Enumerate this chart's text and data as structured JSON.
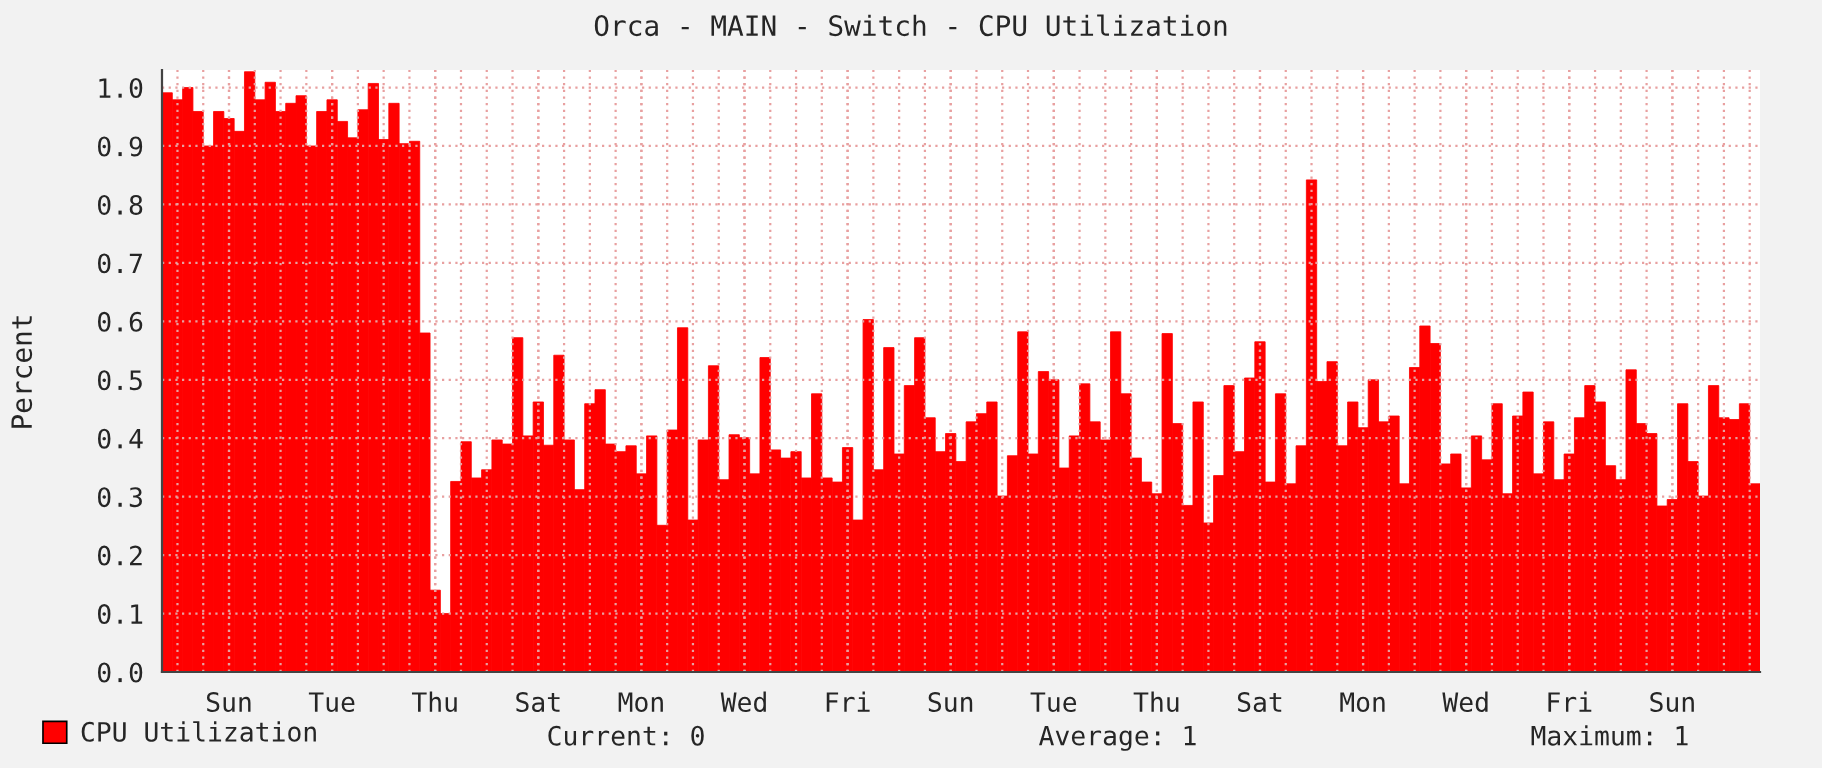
{
  "chart_data": {
    "type": "bar",
    "title": "Orca - MAIN - Switch - CPU Utilization",
    "ylabel": "Percent",
    "categories": [
      null,
      null,
      null,
      null,
      null,
      null,
      "Sun",
      null,
      null,
      null,
      null,
      null,
      null,
      null,
      null,
      null,
      "Tue",
      null,
      null,
      null,
      null,
      null,
      null,
      null,
      null,
      null,
      "Thu",
      null,
      null,
      null,
      null,
      null,
      null,
      null,
      null,
      null,
      "Sat",
      null,
      null,
      null,
      null,
      null,
      null,
      null,
      null,
      null,
      "Mon",
      null,
      null,
      null,
      null,
      null,
      null,
      null,
      null,
      null,
      "Wed",
      null,
      null,
      null,
      null,
      null,
      null,
      null,
      null,
      null,
      "Fri",
      null,
      null,
      null,
      null,
      null,
      null,
      null,
      null,
      null,
      "Sun",
      null,
      null,
      null,
      null,
      null,
      null,
      null,
      null,
      null,
      "Tue",
      null,
      null,
      null,
      null,
      null,
      null,
      null,
      null,
      null,
      "Thu",
      null,
      null,
      null,
      null,
      null,
      null,
      null,
      null,
      null,
      "Sat",
      null,
      null,
      null,
      null,
      null,
      null,
      null,
      null,
      null,
      "Mon",
      null,
      null,
      null,
      null,
      null,
      null,
      null,
      null,
      null,
      "Wed",
      null,
      null,
      null,
      null,
      null,
      null,
      null,
      null,
      null,
      "Fri",
      null,
      null,
      null,
      null,
      null,
      null,
      null,
      null,
      null,
      "Sun",
      null,
      null,
      null,
      null,
      null,
      null,
      null,
      null
    ],
    "series": [
      {
        "name": "CPU Utilization",
        "color": "#ff0000",
        "values": [
          0.991,
          0.979,
          1.0,
          0.959,
          0.9,
          0.959,
          0.947,
          0.925,
          1.027,
          0.979,
          1.009,
          0.959,
          0.973,
          0.986,
          0.9,
          0.959,
          0.979,
          0.942,
          0.914,
          0.962,
          1.007,
          0.911,
          0.973,
          0.904,
          0.908,
          0.58,
          0.14,
          0.1,
          0.326,
          0.394,
          0.332,
          0.346,
          0.397,
          0.39,
          0.572,
          0.404,
          0.462,
          0.388,
          0.542,
          0.397,
          0.312,
          0.459,
          0.483,
          0.39,
          0.377,
          0.387,
          0.339,
          0.404,
          0.251,
          0.414,
          0.589,
          0.26,
          0.397,
          0.524,
          0.329,
          0.406,
          0.401,
          0.339,
          0.538,
          0.38,
          0.366,
          0.377,
          0.332,
          0.476,
          0.332,
          0.325,
          0.384,
          0.26,
          0.603,
          0.346,
          0.555,
          0.373,
          0.49,
          0.572,
          0.435,
          0.377,
          0.408,
          0.36,
          0.428,
          0.442,
          0.462,
          0.301,
          0.37,
          0.582,
          0.373,
          0.514,
          0.5,
          0.349,
          0.404,
          0.493,
          0.428,
          0.397,
          0.582,
          0.476,
          0.366,
          0.325,
          0.305,
          0.579,
          0.425,
          0.285,
          0.462,
          0.255,
          0.336,
          0.49,
          0.377,
          0.503,
          0.565,
          0.325,
          0.476,
          0.322,
          0.387,
          0.842,
          0.497,
          0.531,
          0.387,
          0.462,
          0.418,
          0.5,
          0.428,
          0.438,
          0.322,
          0.521,
          0.592,
          0.562,
          0.356,
          0.373,
          0.315,
          0.404,
          0.363,
          0.459,
          0.305,
          0.438,
          0.479,
          0.339,
          0.428,
          0.329,
          0.373,
          0.435,
          0.49,
          0.462,
          0.353,
          0.329,
          0.517,
          0.425,
          0.408,
          0.284,
          0.295,
          0.459,
          0.36,
          0.301,
          0.49,
          0.435,
          0.432,
          0.459,
          0.322
        ]
      }
    ],
    "ylim": [
      0,
      1.03
    ],
    "yticks": [
      {
        "value": 0,
        "label": "0.0"
      },
      0.1,
      0.2,
      0.3,
      0.4,
      0.5,
      0.6,
      0.7,
      0.8,
      0.9,
      {
        "value": 1,
        "label": "1.0"
      }
    ],
    "grid": true,
    "legend": "bottom left",
    "annotations": [
      "Current: 0",
      "Average: 1",
      "Maximum: 1"
    ]
  }
}
